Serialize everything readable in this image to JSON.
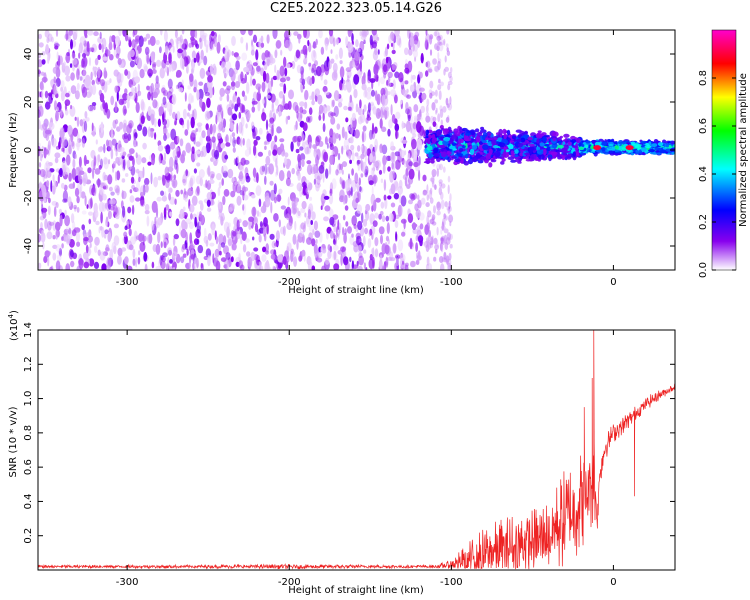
{
  "title": "C2E5.2022.323.05.14.G26",
  "chart_data": [
    {
      "type": "heatmap",
      "xlabel": "Height of straight line (km)",
      "ylabel": "Frequency (Hz)",
      "xlim": [
        -355,
        38
      ],
      "ylim": [
        -50,
        50
      ],
      "x_ticks": [
        -300,
        -200,
        -100,
        0
      ],
      "y_ticks": [
        -40,
        -20,
        0,
        20,
        40
      ],
      "grid": false,
      "colorbar": {
        "label": "Normalized spectral amplitude",
        "range": [
          0,
          1
        ],
        "ticks": [
          0.0,
          0.2,
          0.4,
          0.6,
          0.8
        ],
        "colors": [
          "#ffffff",
          "#7700ee",
          "#0000ff",
          "#00ffff",
          "#00ff00",
          "#ffff00",
          "#ff0000",
          "#ff00cc"
        ]
      },
      "regions": [
        {
          "x": [
            -355,
            -115
          ],
          "freq_spread": [
            -50,
            50
          ],
          "amplitude": [
            0.02,
            0.15
          ]
        },
        {
          "x": [
            -115,
            -100
          ],
          "freq_spread": [
            -50,
            50
          ],
          "amplitude": [
            0.0,
            0.06
          ]
        },
        {
          "x": [
            -115,
            -20
          ],
          "freq_band": [
            -5,
            10
          ],
          "amplitude": [
            0.1,
            0.5
          ]
        },
        {
          "x": [
            -20,
            38
          ],
          "freq_band": [
            -2,
            4
          ],
          "amplitude": [
            0.3,
            0.85
          ]
        }
      ],
      "peaks": [
        {
          "x": -10,
          "freq": 1,
          "amplitude": 0.9
        },
        {
          "x": 10,
          "freq": 1,
          "amplitude": 0.9
        }
      ]
    },
    {
      "type": "line",
      "xlabel": "Height of straight line (km)",
      "ylabel": "SNR (10 * v/v)",
      "y_scale_label": "(x10",
      "y_scale_exp": "4",
      "y_scale_close": ")",
      "xlim": [
        -355,
        38
      ],
      "ylim": [
        0,
        1.4
      ],
      "x_ticks": [
        -300,
        -200,
        -100,
        0
      ],
      "y_ticks": [
        0.2,
        0.4,
        0.6,
        0.8,
        1.0,
        1.2,
        1.4
      ],
      "grid": false,
      "color": "#ee2222",
      "series": [
        {
          "x": [
            -355,
            -300,
            -250,
            -200,
            -150,
            -110,
            -100,
            -90,
            -80,
            -70,
            -60,
            -50,
            -40,
            -30,
            -20,
            -15,
            -12,
            -10,
            -8,
            -5,
            0,
            10,
            20,
            30,
            38
          ],
          "base": [
            0.02,
            0.02,
            0.02,
            0.02,
            0.02,
            0.02,
            0.03,
            0.06,
            0.09,
            0.12,
            0.14,
            0.16,
            0.2,
            0.3,
            0.4,
            0.48,
            0.55,
            0.3,
            0.6,
            0.72,
            0.8,
            0.88,
            0.97,
            1.03,
            1.07
          ],
          "spread": [
            0.01,
            0.01,
            0.01,
            0.015,
            0.01,
            0.01,
            0.03,
            0.1,
            0.16,
            0.18,
            0.2,
            0.2,
            0.22,
            0.3,
            0.3,
            0.25,
            0.3,
            0.08,
            0.1,
            0.08,
            0.06,
            0.05,
            0.04,
            0.03,
            0.02
          ],
          "spikes": [
            {
              "x": -12,
              "y": 1.4
            },
            {
              "x": -13,
              "y": 1.12
            },
            {
              "x": -18,
              "y": 0.95
            },
            {
              "x": 13,
              "y": 0.43
            },
            {
              "x": 6,
              "y": 0.8
            }
          ]
        }
      ]
    }
  ]
}
